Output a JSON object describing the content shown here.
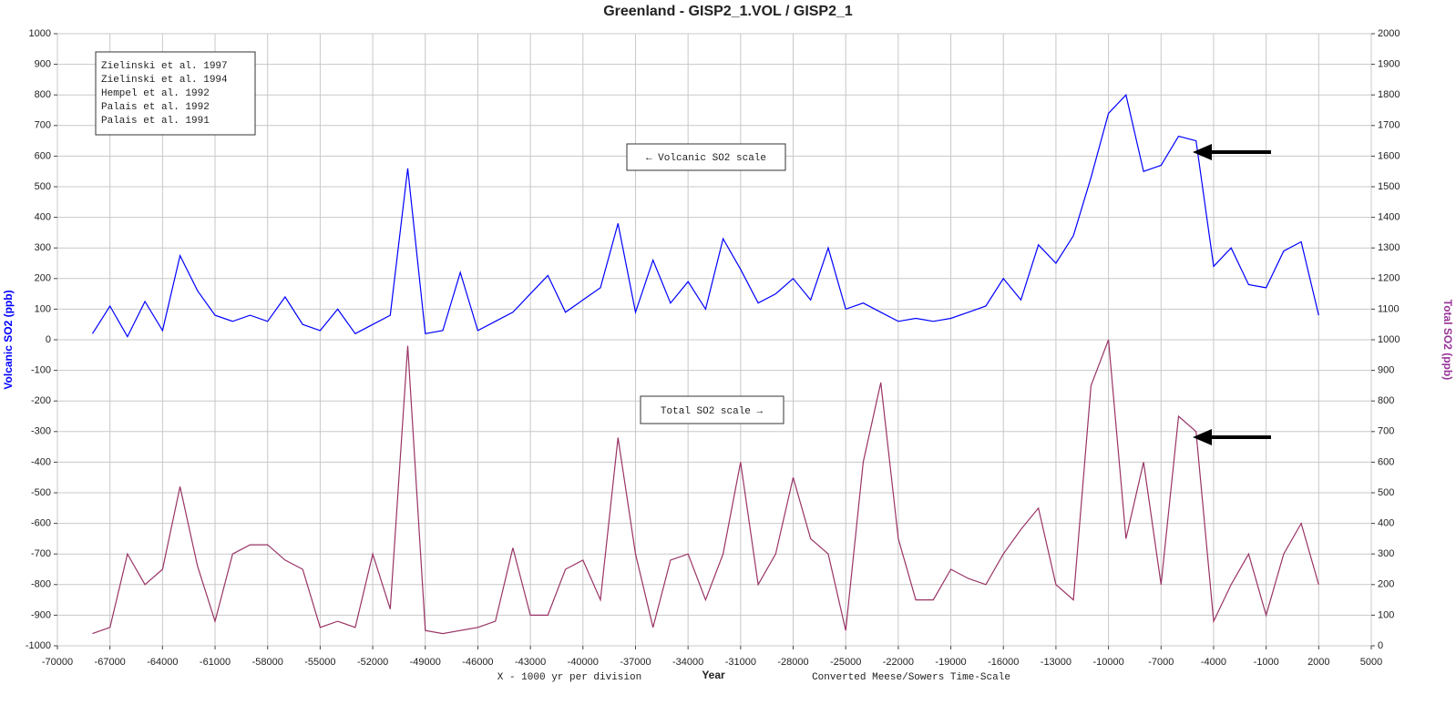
{
  "chart_data": {
    "type": "line",
    "title": "Greenland - GISP2_1.VOL / GISP2_1",
    "ylabel": "Volcanic SO2 (ppb)",
    "y2label": "Total SO2 (ppb)",
    "xlabel": "Year",
    "annotations": [
      "X - 1000 yr per division",
      "Converted Meese/Sowers Time-Scale",
      "← Volcanic SO2 scale",
      "Total SO2 scale →"
    ],
    "references": [
      "Zielinski et al. 1997",
      "Zielinski et al. 1994",
      "Hempel et al. 1992",
      "Palais et al. 1992",
      "Palais et al. 1991"
    ],
    "xlim": [
      -70000,
      5000
    ],
    "xticks": [
      -70000,
      -67000,
      -64000,
      -61000,
      -58000,
      -55000,
      -52000,
      -49000,
      -46000,
      -43000,
      -40000,
      -37000,
      -34000,
      -31000,
      -28000,
      -25000,
      -22000,
      -19000,
      -16000,
      -13000,
      -10000,
      -7000,
      -4000,
      -1000,
      2000,
      5000
    ],
    "ylim": [
      -1000,
      1000
    ],
    "yticks": [
      -1000,
      -900,
      -800,
      -700,
      -600,
      -500,
      -400,
      -300,
      -200,
      -100,
      0,
      100,
      200,
      300,
      400,
      500,
      600,
      700,
      800,
      900,
      1000
    ],
    "y2lim": [
      0,
      2000
    ],
    "y2ticks": [
      0,
      100,
      200,
      300,
      400,
      500,
      600,
      700,
      800,
      900,
      1000,
      1100,
      1200,
      1300,
      1400,
      1500,
      1600,
      1700,
      1800,
      1900,
      2000
    ],
    "grid": true,
    "x": [
      -68000,
      -67000,
      -66000,
      -65000,
      -64000,
      -63000,
      -62000,
      -61000,
      -60000,
      -59000,
      -58000,
      -57000,
      -56000,
      -55000,
      -54000,
      -53000,
      -52000,
      -51000,
      -50000,
      -49000,
      -48000,
      -47000,
      -46000,
      -45000,
      -44000,
      -43000,
      -42000,
      -41000,
      -40000,
      -39000,
      -38000,
      -37000,
      -36000,
      -35000,
      -34000,
      -33000,
      -32000,
      -31000,
      -30000,
      -29000,
      -28000,
      -27000,
      -26000,
      -25000,
      -24000,
      -23000,
      -22000,
      -21000,
      -20000,
      -19000,
      -18000,
      -17000,
      -16000,
      -15000,
      -14000,
      -13000,
      -12000,
      -11000,
      -10000,
      -9000,
      -8000,
      -7000,
      -6000,
      -5000,
      -4000,
      -3000,
      -2000,
      -1000,
      0,
      1000,
      2000
    ],
    "series": [
      {
        "color": "#0000ff",
        "axis": "y",
        "values": [
          20,
          110,
          10,
          125,
          30,
          275,
          160,
          80,
          60,
          80,
          60,
          140,
          50,
          30,
          100,
          20,
          50,
          80,
          560,
          20,
          30,
          220,
          30,
          60,
          90,
          150,
          210,
          90,
          130,
          170,
          380,
          90,
          260,
          120,
          190,
          100,
          330,
          230,
          120,
          150,
          200,
          130,
          300,
          100,
          120,
          90,
          60,
          70,
          60,
          70,
          90,
          110,
          200,
          130,
          310,
          250,
          340,
          530,
          740,
          800,
          550,
          570,
          665,
          650,
          240,
          300,
          180,
          170,
          290,
          320,
          80
        ]
      },
      {
        "color": "#993366",
        "axis": "y2",
        "values": [
          40,
          60,
          300,
          200,
          250,
          520,
          260,
          80,
          300,
          330,
          330,
          280,
          250,
          60,
          80,
          60,
          300,
          120,
          980,
          50,
          40,
          50,
          60,
          80,
          320,
          100,
          100,
          250,
          280,
          150,
          680,
          300,
          60,
          280,
          300,
          150,
          300,
          600,
          200,
          300,
          550,
          350,
          300,
          50,
          600,
          860,
          350,
          150,
          150,
          250,
          220,
          200,
          300,
          380,
          450,
          200,
          150,
          850,
          1000,
          350,
          600,
          200,
          750,
          700,
          80,
          200,
          300,
          100,
          300,
          400,
          200
        ]
      }
    ]
  }
}
